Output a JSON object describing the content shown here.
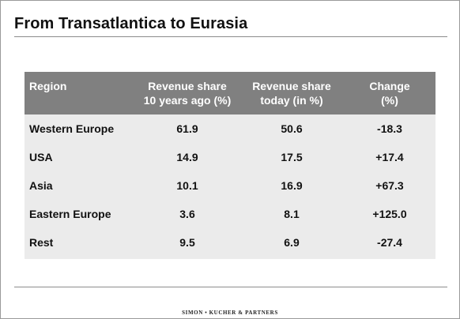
{
  "slide": {
    "title": "From Transatlantica to Eurasia",
    "footer": "SIMON • KUCHER & PARTNERS"
  },
  "table": {
    "headers": {
      "region": "Region",
      "share_past_line1": "Revenue share",
      "share_past_line2": "10 years ago (%)",
      "share_today_line1": "Revenue share",
      "share_today_line2": "today (in %)",
      "change_line1": "Change",
      "change_line2": "(%)"
    },
    "rows": [
      {
        "region": "Western Europe",
        "past": "61.9",
        "today": "50.6",
        "change": "-18.3"
      },
      {
        "region": "USA",
        "past": "14.9",
        "today": "17.5",
        "change": "+17.4"
      },
      {
        "region": "Asia",
        "past": "10.1",
        "today": "16.9",
        "change": "+67.3"
      },
      {
        "region": "Eastern Europe",
        "past": "3.6",
        "today": "8.1",
        "change": "+125.0"
      },
      {
        "region": "Rest",
        "past": "9.5",
        "today": "6.9",
        "change": "-27.4"
      }
    ]
  },
  "colors": {
    "header_bg": "#808080",
    "body_bg": "#ebebeb",
    "rule": "#8c8c8c"
  }
}
